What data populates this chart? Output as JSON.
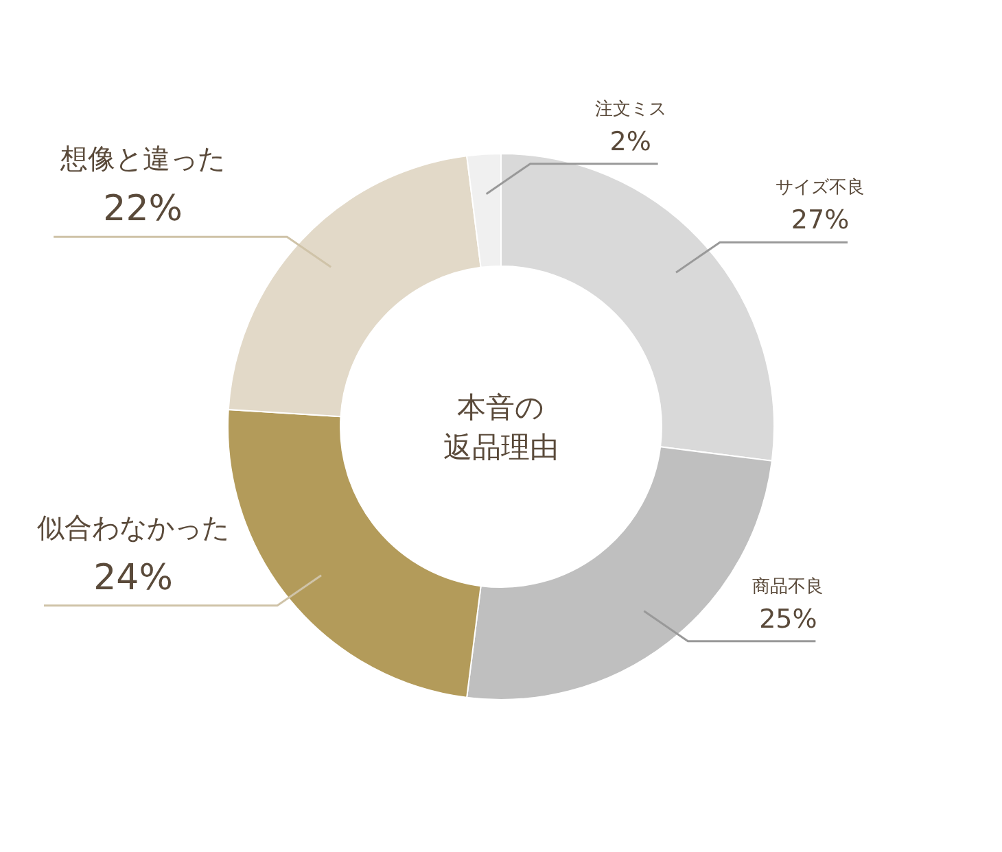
{
  "chart_data": {
    "type": "donut",
    "title": "本音の",
    "subtitle": "返品理由",
    "categories": [
      "サイズ不良",
      "商品不良",
      "似合わなかった",
      "想像と違った",
      "注文ミス"
    ],
    "values": [
      27,
      25,
      24,
      22,
      2
    ],
    "value_labels": [
      "27%",
      "25%",
      "24%",
      "22%",
      "2%"
    ],
    "colors": [
      "#d9d9d9",
      "#bfbfbf",
      "#b39b5a",
      "#e2d9c8",
      "#f0f0f0"
    ]
  }
}
